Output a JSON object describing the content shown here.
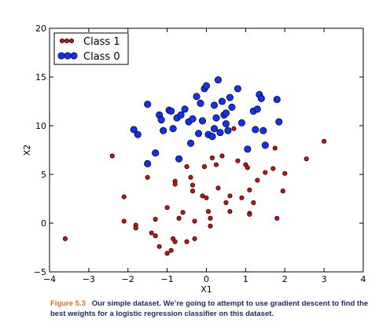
{
  "chart_data": {
    "type": "scatter",
    "xlabel": "X1",
    "ylabel": "X2",
    "xlim": [
      -4,
      4
    ],
    "ylim": [
      -5,
      20
    ],
    "xticks": [
      "−4",
      "−3",
      "−2",
      "−1",
      "0",
      "1",
      "2",
      "3",
      "4"
    ],
    "yticks": [
      "−5",
      "0",
      "5",
      "10",
      "15",
      "20"
    ],
    "legend_position": "top-left",
    "series": [
      {
        "name": "Class 1",
        "color": "#cc1111",
        "points": [
          [
            -3.6,
            -1.6
          ],
          [
            -2.4,
            6.9
          ],
          [
            -2.1,
            2.7
          ],
          [
            -2.1,
            0.2
          ],
          [
            -1.8,
            -0.2
          ],
          [
            -1.8,
            -0.5
          ],
          [
            -1.5,
            4.7
          ],
          [
            -1.4,
            -1.0
          ],
          [
            -1.3,
            -1.3
          ],
          [
            -1.3,
            0.4
          ],
          [
            -1.2,
            -2.4
          ],
          [
            -1.0,
            -3.1
          ],
          [
            -1.0,
            1.6
          ],
          [
            -0.9,
            -2.8
          ],
          [
            -0.85,
            -1.6
          ],
          [
            -0.8,
            -1.9
          ],
          [
            -0.8,
            4.3
          ],
          [
            -0.8,
            4.0
          ],
          [
            -0.7,
            0.5
          ],
          [
            -0.6,
            1.1
          ],
          [
            -0.5,
            5.8
          ],
          [
            -0.5,
            -1.9
          ],
          [
            -0.4,
            4.7
          ],
          [
            -0.35,
            3.3
          ],
          [
            -0.35,
            3.9
          ],
          [
            -0.3,
            0.2
          ],
          [
            -0.3,
            -1.6
          ],
          [
            -0.1,
            2.8
          ],
          [
            0.0,
            2.6
          ],
          [
            -0.05,
            5.8
          ],
          [
            0.05,
            1.2
          ],
          [
            0.1,
            -0.3
          ],
          [
            0.1,
            0.5
          ],
          [
            0.15,
            6.7
          ],
          [
            0.25,
            6.0
          ],
          [
            0.3,
            3.6
          ],
          [
            0.4,
            6.9
          ],
          [
            0.5,
            2.1
          ],
          [
            0.6,
            1.2
          ],
          [
            0.6,
            2.8
          ],
          [
            0.7,
            9.7
          ],
          [
            0.8,
            6.4
          ],
          [
            0.9,
            2.6
          ],
          [
            1.0,
            6.0
          ],
          [
            1.05,
            5.7
          ],
          [
            1.1,
            1.0
          ],
          [
            1.1,
            3.4
          ],
          [
            1.2,
            2.1
          ],
          [
            1.3,
            4.4
          ],
          [
            1.5,
            5.2
          ],
          [
            1.7,
            5.6
          ],
          [
            1.75,
            7.7
          ],
          [
            1.8,
            0.5
          ],
          [
            1.95,
            3.3
          ],
          [
            2.0,
            5.1
          ],
          [
            2.55,
            6.6
          ],
          [
            3.0,
            8.4
          ],
          [
            1.1,
            0.9
          ]
        ]
      },
      {
        "name": "Class 0",
        "color": "#1133ee",
        "points": [
          [
            -1.85,
            9.6
          ],
          [
            -1.75,
            9.1
          ],
          [
            -1.5,
            12.2
          ],
          [
            -1.5,
            6.1
          ],
          [
            -1.3,
            7.2
          ],
          [
            -1.2,
            11.1
          ],
          [
            -1.15,
            10.6
          ],
          [
            -1.1,
            9.5
          ],
          [
            -0.95,
            11.6
          ],
          [
            -0.9,
            11.5
          ],
          [
            -0.85,
            9.7
          ],
          [
            -0.75,
            10.8
          ],
          [
            -0.7,
            6.6
          ],
          [
            -0.65,
            11.1
          ],
          [
            -0.55,
            11.7
          ],
          [
            -0.45,
            10.4
          ],
          [
            -0.4,
            8.2
          ],
          [
            -0.35,
            10.7
          ],
          [
            -0.2,
            9.2
          ],
          [
            -0.15,
            12.3
          ],
          [
            -0.1,
            10.5
          ],
          [
            -0.05,
            13.8
          ],
          [
            0.0,
            14.1
          ],
          [
            0.05,
            9.1
          ],
          [
            0.15,
            8.9
          ],
          [
            0.2,
            12.1
          ],
          [
            0.2,
            9.7
          ],
          [
            0.25,
            10.8
          ],
          [
            0.3,
            14.7
          ],
          [
            0.35,
            9.3
          ],
          [
            0.4,
            12.5
          ],
          [
            0.45,
            11.1
          ],
          [
            0.5,
            10.2
          ],
          [
            0.55,
            9.5
          ],
          [
            0.6,
            12.9
          ],
          [
            0.65,
            11.9
          ],
          [
            0.8,
            13.8
          ],
          [
            0.9,
            10.3
          ],
          [
            1.05,
            7.6
          ],
          [
            1.2,
            11.5
          ],
          [
            1.25,
            9.6
          ],
          [
            1.3,
            11.7
          ],
          [
            1.35,
            13.2
          ],
          [
            1.4,
            12.8
          ],
          [
            1.45,
            9.5
          ],
          [
            1.5,
            8.0
          ],
          [
            1.8,
            12.7
          ],
          [
            1.85,
            10.4
          ],
          [
            0.5,
            11.3
          ],
          [
            -0.25,
            13.0
          ]
        ]
      }
    ]
  },
  "caption": {
    "figure_label": "Figure 5.3",
    "text": "Our simple dataset. We’re going to attempt to use gradient descent to find the best weights for a logistic regression classifier on this dataset."
  }
}
